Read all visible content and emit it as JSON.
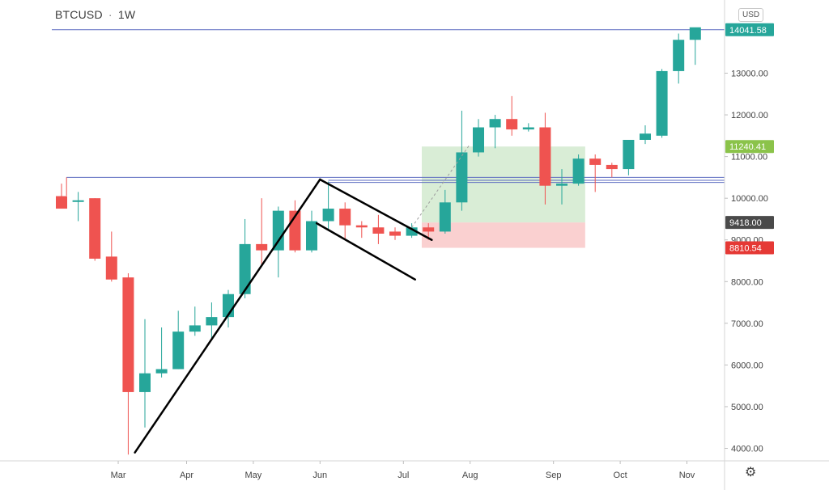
{
  "header": {
    "symbol": "BTCUSD",
    "separator": "·",
    "timeframe": "1W",
    "currency": "USD"
  },
  "settings_icon": "gear-icon",
  "colors": {
    "up": "#26a69a",
    "down": "#ef5350",
    "level_line": "#5c6bc0",
    "target_zone": "#b9dfb4",
    "stop_zone": "#f8b7b7",
    "badge_price": "#26a69a",
    "badge_mid": "#8bc34a",
    "badge_current": "#4a4a4a",
    "badge_stop": "#e53935"
  },
  "chart_data": {
    "type": "candlestick",
    "symbol": "BTCUSD",
    "timeframe": "1W",
    "y_axis": {
      "min": 3700,
      "max": 14600,
      "ticks": [
        4000,
        5000,
        6000,
        7000,
        8000,
        9000,
        10000,
        11000,
        12000,
        13000
      ],
      "tick_labels": [
        "4000.00",
        "5000.00",
        "6000.00",
        "7000.00",
        "8000.00",
        "9000.00",
        "10000.00",
        "11000.00",
        "12000.00",
        "13000.00"
      ]
    },
    "x_axis": {
      "labels": [
        "Mar",
        "Apr",
        "May",
        "Jun",
        "Jul",
        "Aug",
        "Sep",
        "Oct",
        "Nov"
      ],
      "label_index": [
        3.4,
        7.5,
        11.5,
        15.5,
        20.5,
        24.5,
        29.5,
        33.5,
        37.5
      ]
    },
    "candles": [
      {
        "o": 10050,
        "h": 10350,
        "l": 9800,
        "c": 9750
      },
      {
        "o": 9950,
        "h": 10150,
        "l": 9450,
        "c": 9950
      },
      {
        "o": 10000,
        "h": 10000,
        "l": 8500,
        "c": 8550
      },
      {
        "o": 8600,
        "h": 9200,
        "l": 8000,
        "c": 8050
      },
      {
        "o": 8100,
        "h": 8200,
        "l": 3850,
        "c": 5350
      },
      {
        "o": 5350,
        "h": 7100,
        "l": 4500,
        "c": 5800
      },
      {
        "o": 5800,
        "h": 6900,
        "l": 5700,
        "c": 5900
      },
      {
        "o": 5900,
        "h": 7300,
        "l": 5900,
        "c": 6800
      },
      {
        "o": 6800,
        "h": 7400,
        "l": 6700,
        "c": 6950
      },
      {
        "o": 6950,
        "h": 7500,
        "l": 6600,
        "c": 7150
      },
      {
        "o": 7150,
        "h": 7800,
        "l": 6900,
        "c": 7700
      },
      {
        "o": 7700,
        "h": 9500,
        "l": 7600,
        "c": 8900
      },
      {
        "o": 8900,
        "h": 10000,
        "l": 8400,
        "c": 8750
      },
      {
        "o": 8750,
        "h": 9800,
        "l": 8100,
        "c": 9700
      },
      {
        "o": 9700,
        "h": 9950,
        "l": 8700,
        "c": 8750
      },
      {
        "o": 8750,
        "h": 9700,
        "l": 8700,
        "c": 9450
      },
      {
        "o": 9450,
        "h": 10400,
        "l": 9250,
        "c": 9750
      },
      {
        "o": 9750,
        "h": 9900,
        "l": 9000,
        "c": 9350
      },
      {
        "o": 9350,
        "h": 9450,
        "l": 9050,
        "c": 9300
      },
      {
        "o": 9300,
        "h": 9600,
        "l": 8900,
        "c": 9150
      },
      {
        "o": 9200,
        "h": 9300,
        "l": 9000,
        "c": 9100
      },
      {
        "o": 9100,
        "h": 9400,
        "l": 9050,
        "c": 9300
      },
      {
        "o": 9300,
        "h": 9400,
        "l": 9000,
        "c": 9200
      },
      {
        "o": 9200,
        "h": 10200,
        "l": 9150,
        "c": 9900
      },
      {
        "o": 9900,
        "h": 12100,
        "l": 9700,
        "c": 11100
      },
      {
        "o": 11100,
        "h": 11900,
        "l": 11000,
        "c": 11700
      },
      {
        "o": 11700,
        "h": 12000,
        "l": 11200,
        "c": 11900
      },
      {
        "o": 11900,
        "h": 12450,
        "l": 11500,
        "c": 11650
      },
      {
        "o": 11650,
        "h": 11800,
        "l": 11600,
        "c": 11700
      },
      {
        "o": 11700,
        "h": 12050,
        "l": 9850,
        "c": 10300
      },
      {
        "o": 10300,
        "h": 10700,
        "l": 9850,
        "c": 10350
      },
      {
        "o": 10350,
        "h": 11050,
        "l": 10300,
        "c": 10950
      },
      {
        "o": 10950,
        "h": 11050,
        "l": 10150,
        "c": 10800
      },
      {
        "o": 10800,
        "h": 10850,
        "l": 10500,
        "c": 10700
      },
      {
        "o": 10700,
        "h": 11400,
        "l": 10550,
        "c": 11400
      },
      {
        "o": 11400,
        "h": 11750,
        "l": 11300,
        "c": 11550
      },
      {
        "o": 11500,
        "h": 13100,
        "l": 11450,
        "c": 13050
      },
      {
        "o": 13050,
        "h": 13950,
        "l": 12750,
        "c": 13800
      },
      {
        "o": 13800,
        "h": 14050,
        "l": 13200,
        "c": 14100
      }
    ],
    "horizontal_lines": [
      {
        "price": 14041.58,
        "x_from": 0
      },
      {
        "price": 10500,
        "x_from": 0.3
      },
      {
        "price": 10430,
        "x_from": 16
      },
      {
        "price": 10380,
        "x_from": 16
      }
    ],
    "price_badges": [
      {
        "label": "14041.58",
        "price": 14041.58,
        "color_key": "badge_price"
      },
      {
        "label": "11240.41",
        "price": 11240.41,
        "color_key": "badge_mid"
      },
      {
        "label": "9418.00",
        "price": 9418.0,
        "color_key": "badge_current"
      },
      {
        "label": "8810.54",
        "price": 8810.54,
        "color_key": "badge_stop"
      }
    ],
    "position": {
      "from_index": 21.6,
      "to_index": 31.4,
      "entry": 9418.0,
      "target": 11240.41,
      "stop": 8810.54
    },
    "trendlines": [
      {
        "i1": 4.4,
        "p1": 3900,
        "i2": 15.5,
        "p2": 10450
      },
      {
        "i1": 15.5,
        "p1": 10450,
        "i2": 22.2,
        "p2": 9000
      },
      {
        "i1": 15.3,
        "p1": 9400,
        "i2": 21.2,
        "p2": 8050
      }
    ],
    "dashed_projection": {
      "i1": 21.0,
      "p1": 9300,
      "i2": 24.5,
      "p2": 11300
    }
  }
}
